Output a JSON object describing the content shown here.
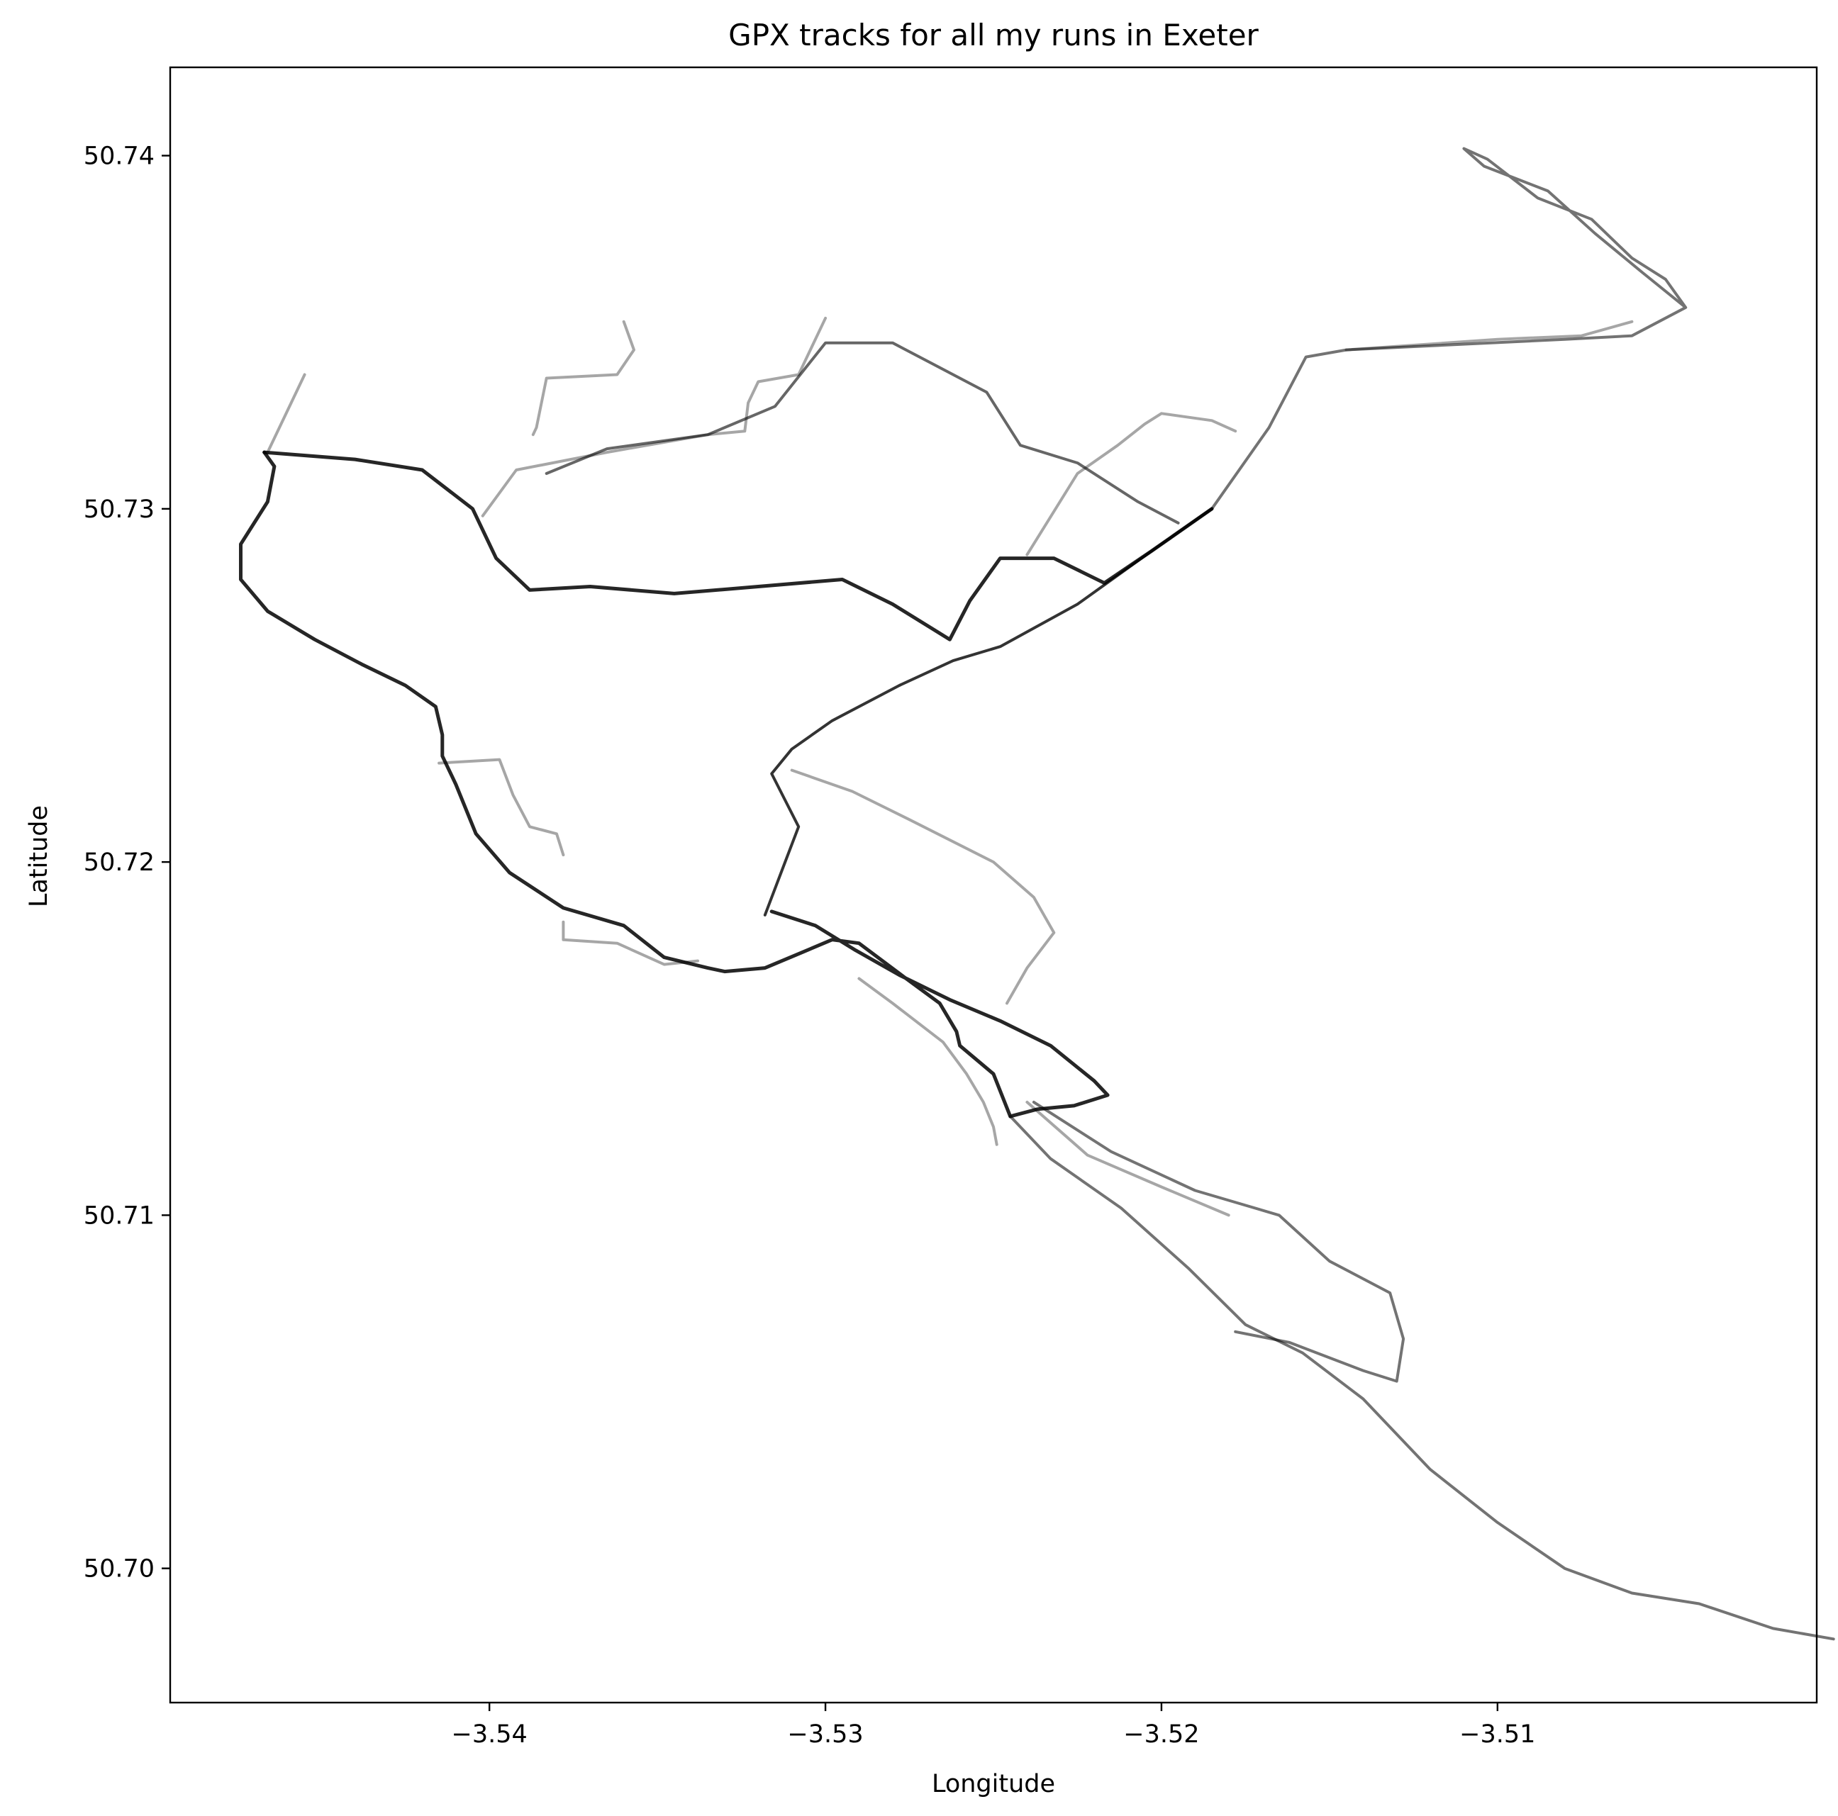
{
  "chart_data": {
    "type": "line",
    "title": "GPX tracks for all my runs in Exeter",
    "xlabel": "Longitude",
    "ylabel": "Latitude",
    "xlim": [
      -3.5495,
      -3.5005
    ],
    "ylim": [
      50.6962,
      50.7425
    ],
    "xticks": [
      -3.54,
      -3.53,
      -3.52,
      -3.51
    ],
    "xtick_labels": [
      "−3.54",
      "−3.53",
      "−3.52",
      "−3.51"
    ],
    "yticks": [
      50.7,
      50.71,
      50.72,
      50.73,
      50.74
    ],
    "ytick_labels": [
      "50.70",
      "50.71",
      "50.72",
      "50.73",
      "50.74"
    ],
    "grid": false,
    "line_color": "#000000",
    "series": [
      {
        "opacity": 0.85,
        "width": 5,
        "points": [
          [
            -3.5467,
            50.7316
          ],
          [
            -3.5464,
            50.7312
          ],
          [
            -3.5466,
            50.7302
          ],
          [
            -3.5474,
            50.729
          ],
          [
            -3.5474,
            50.728
          ],
          [
            -3.5466,
            50.7271
          ],
          [
            -3.5452,
            50.7263
          ],
          [
            -3.5438,
            50.7256
          ],
          [
            -3.5425,
            50.725
          ],
          [
            -3.5416,
            50.7244
          ],
          [
            -3.5414,
            50.7236
          ],
          [
            -3.5414,
            50.723
          ],
          [
            -3.541,
            50.7222
          ],
          [
            -3.5404,
            50.7208
          ],
          [
            -3.5394,
            50.7197
          ],
          [
            -3.5378,
            50.7187
          ],
          [
            -3.536,
            50.7182
          ],
          [
            -3.5348,
            50.7173
          ],
          [
            -3.5335,
            50.717
          ],
          [
            -3.533,
            50.7169
          ],
          [
            -3.5318,
            50.717
          ],
          [
            -3.5308,
            50.7174
          ],
          [
            -3.5298,
            50.7178
          ],
          [
            -3.529,
            50.7177
          ],
          [
            -3.5276,
            50.7167
          ],
          [
            -3.5266,
            50.716
          ],
          [
            -3.5261,
            50.7152
          ],
          [
            -3.526,
            50.7148
          ],
          [
            -3.525,
            50.714
          ],
          [
            -3.5245,
            50.7128
          ],
          [
            -3.5237,
            50.713
          ],
          [
            -3.5226,
            50.7131
          ],
          [
            -3.5216,
            50.7134
          ],
          [
            -3.522,
            50.7138
          ],
          [
            -3.5233,
            50.7148
          ],
          [
            -3.5248,
            50.7155
          ],
          [
            -3.5263,
            50.7161
          ],
          [
            -3.5278,
            50.7168
          ],
          [
            -3.5291,
            50.7175
          ],
          [
            -3.5303,
            50.7182
          ],
          [
            -3.5316,
            50.7186
          ]
        ]
      },
      {
        "opacity": 0.85,
        "width": 5,
        "points": [
          [
            -3.5467,
            50.7316
          ],
          [
            -3.544,
            50.7314
          ],
          [
            -3.542,
            50.7311
          ],
          [
            -3.5405,
            50.73
          ],
          [
            -3.5398,
            50.7286
          ],
          [
            -3.5388,
            50.7277
          ],
          [
            -3.537,
            50.7278
          ],
          [
            -3.5345,
            50.7276
          ],
          [
            -3.532,
            50.7278
          ],
          [
            -3.5295,
            50.728
          ],
          [
            -3.528,
            50.7273
          ],
          [
            -3.5263,
            50.7263
          ],
          [
            -3.5257,
            50.7274
          ],
          [
            -3.5248,
            50.7286
          ],
          [
            -3.5232,
            50.7286
          ],
          [
            -3.5217,
            50.7279
          ],
          [
            -3.5203,
            50.7288
          ],
          [
            -3.5185,
            50.73
          ]
        ]
      },
      {
        "opacity": 0.8,
        "width": 4,
        "points": [
          [
            -3.5185,
            50.73
          ],
          [
            -3.5203,
            50.7288
          ],
          [
            -3.5225,
            50.7273
          ],
          [
            -3.5248,
            50.7261
          ],
          [
            -3.5262,
            50.7257
          ],
          [
            -3.5278,
            50.725
          ],
          [
            -3.5298,
            50.724
          ],
          [
            -3.531,
            50.7232
          ],
          [
            -3.5316,
            50.7225
          ],
          [
            -3.5308,
            50.721
          ],
          [
            -3.5312,
            50.72
          ],
          [
            -3.5318,
            50.7185
          ]
        ]
      },
      {
        "opacity": 0.55,
        "width": 4,
        "points": [
          [
            -3.5185,
            50.73
          ],
          [
            -3.5168,
            50.7323
          ],
          [
            -3.5157,
            50.7343
          ],
          [
            -3.5145,
            50.7345
          ],
          [
            -3.508,
            50.7348
          ],
          [
            -3.506,
            50.7349
          ],
          [
            -3.5044,
            50.7357
          ],
          [
            -3.505,
            50.7365
          ],
          [
            -3.506,
            50.7371
          ],
          [
            -3.5072,
            50.7382
          ],
          [
            -3.5088,
            50.7388
          ],
          [
            -3.5103,
            50.7399
          ],
          [
            -3.511,
            50.7402
          ],
          [
            -3.5104,
            50.7397
          ],
          [
            -3.5085,
            50.739
          ],
          [
            -3.5071,
            50.7378
          ],
          [
            -3.5057,
            50.7367
          ],
          [
            -3.5044,
            50.7357
          ]
        ]
      },
      {
        "opacity": 0.35,
        "width": 4,
        "points": [
          [
            -3.5145,
            50.7345
          ],
          [
            -3.51,
            50.7348
          ],
          [
            -3.5075,
            50.7349
          ],
          [
            -3.506,
            50.7353
          ]
        ]
      },
      {
        "opacity": 0.6,
        "width": 4,
        "points": [
          [
            -3.5383,
            50.731
          ],
          [
            -3.5365,
            50.7317
          ],
          [
            -3.5335,
            50.7321
          ],
          [
            -3.5315,
            50.7329
          ],
          [
            -3.53,
            50.7347
          ],
          [
            -3.528,
            50.7347
          ],
          [
            -3.5252,
            50.7333
          ],
          [
            -3.5242,
            50.7318
          ],
          [
            -3.5225,
            50.7313
          ],
          [
            -3.5207,
            50.7302
          ],
          [
            -3.5195,
            50.7296
          ]
        ]
      },
      {
        "opacity": 0.35,
        "width": 4,
        "points": [
          [
            -3.5402,
            50.7298
          ],
          [
            -3.5392,
            50.7311
          ],
          [
            -3.5365,
            50.7316
          ],
          [
            -3.5335,
            50.7321
          ],
          [
            -3.5324,
            50.7322
          ],
          [
            -3.5323,
            50.733
          ],
          [
            -3.532,
            50.7336
          ],
          [
            -3.5308,
            50.7338
          ],
          [
            -3.53,
            50.7354
          ]
        ]
      },
      {
        "opacity": 0.35,
        "width": 4,
        "points": [
          [
            -3.536,
            50.7353
          ],
          [
            -3.5357,
            50.7345
          ],
          [
            -3.5362,
            50.7338
          ],
          [
            -3.5383,
            50.7337
          ],
          [
            -3.5386,
            50.7323
          ],
          [
            -3.5387,
            50.7321
          ]
        ]
      },
      {
        "opacity": 0.35,
        "width": 4,
        "points": [
          [
            -3.5455,
            50.7338
          ],
          [
            -3.5466,
            50.7316
          ]
        ]
      },
      {
        "opacity": 0.35,
        "width": 4,
        "points": [
          [
            -3.524,
            50.7287
          ],
          [
            -3.5225,
            50.731
          ],
          [
            -3.5213,
            50.7318
          ],
          [
            -3.5205,
            50.7324
          ],
          [
            -3.52,
            50.7327
          ],
          [
            -3.5185,
            50.7325
          ],
          [
            -3.5178,
            50.7322
          ]
        ]
      },
      {
        "opacity": 0.35,
        "width": 4,
        "points": [
          [
            -3.5415,
            50.7228
          ],
          [
            -3.5397,
            50.7229
          ],
          [
            -3.5393,
            50.7219
          ],
          [
            -3.5388,
            50.721
          ],
          [
            -3.538,
            50.7208
          ],
          [
            -3.5378,
            50.7202
          ]
        ]
      },
      {
        "opacity": 0.35,
        "width": 4,
        "points": [
          [
            -3.531,
            50.7226
          ],
          [
            -3.5292,
            50.722
          ],
          [
            -3.5275,
            50.7212
          ],
          [
            -3.525,
            50.72
          ],
          [
            -3.5238,
            50.719
          ],
          [
            -3.5232,
            50.718
          ],
          [
            -3.524,
            50.717
          ],
          [
            -3.5246,
            50.716
          ]
        ]
      },
      {
        "opacity": 0.35,
        "width": 4,
        "points": [
          [
            -3.5378,
            50.7183
          ],
          [
            -3.5378,
            50.7178
          ],
          [
            -3.5362,
            50.7177
          ],
          [
            -3.5348,
            50.7171
          ],
          [
            -3.5338,
            50.7172
          ]
        ]
      },
      {
        "opacity": 0.35,
        "width": 4,
        "points": [
          [
            -3.529,
            50.7167
          ],
          [
            -3.528,
            50.716
          ],
          [
            -3.5265,
            50.7149
          ],
          [
            -3.5258,
            50.714
          ],
          [
            -3.5253,
            50.7132
          ],
          [
            -3.525,
            50.7125
          ],
          [
            -3.5249,
            50.712
          ]
        ]
      },
      {
        "opacity": 0.35,
        "width": 4,
        "points": [
          [
            -3.524,
            50.7132
          ],
          [
            -3.5222,
            50.7117
          ],
          [
            -3.52,
            50.7108
          ],
          [
            -3.518,
            50.71
          ]
        ]
      },
      {
        "opacity": 0.55,
        "width": 4,
        "points": [
          [
            -3.5245,
            50.7128
          ],
          [
            -3.5233,
            50.7116
          ],
          [
            -3.5212,
            50.7102
          ],
          [
            -3.5192,
            50.7085
          ],
          [
            -3.5175,
            50.7069
          ],
          [
            -3.5158,
            50.7061
          ],
          [
            -3.514,
            50.7048
          ],
          [
            -3.512,
            50.7028
          ],
          [
            -3.51,
            50.7013
          ],
          [
            -3.508,
            50.7
          ],
          [
            -3.506,
            50.6993
          ],
          [
            -3.504,
            50.699
          ],
          [
            -3.5018,
            50.6983
          ],
          [
            -3.5,
            50.698
          ]
        ]
      },
      {
        "opacity": 0.55,
        "width": 4,
        "points": [
          [
            -3.5238,
            50.7132
          ],
          [
            -3.5215,
            50.7118
          ],
          [
            -3.519,
            50.7107
          ],
          [
            -3.5165,
            50.71
          ],
          [
            -3.515,
            50.7087
          ],
          [
            -3.5132,
            50.7078
          ],
          [
            -3.5128,
            50.7065
          ],
          [
            -3.513,
            50.7053
          ],
          [
            -3.514,
            50.7056
          ],
          [
            -3.5162,
            50.7064
          ],
          [
            -3.5178,
            50.7067
          ]
        ]
      }
    ]
  }
}
